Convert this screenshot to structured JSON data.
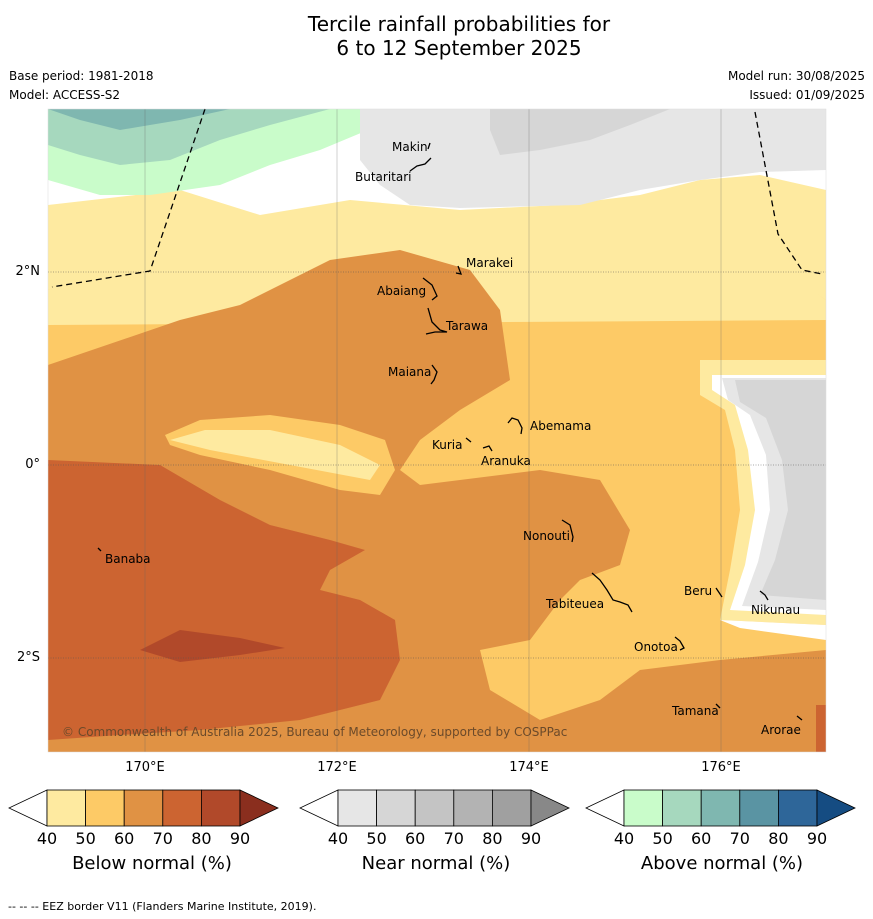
{
  "title_line1": "Tercile rainfall probabilities for",
  "title_line2": "6 to 12 September 2025",
  "base_period": "Base period: 1981-2018",
  "model": "Model: ACCESS-S2",
  "model_run": "Model run: 30/08/2025",
  "issued": "Issued: 01/09/2025",
  "copyright": "© Commonwealth of Australia 2025, Bureau of Meteorology, supported by COSPPac",
  "footer": "--  --  -- EEZ border V11 (Flanders Marine Institute, 2019).",
  "axes": {
    "lon_labels": [
      "170°E",
      "172°E",
      "174°E",
      "176°E"
    ],
    "lat_labels": [
      "2°N",
      "0°",
      "2°S"
    ]
  },
  "places": [
    {
      "name": "Makin"
    },
    {
      "name": "Butaritari"
    },
    {
      "name": "Marakei"
    },
    {
      "name": "Abaiang"
    },
    {
      "name": "Tarawa"
    },
    {
      "name": "Maiana"
    },
    {
      "name": "Abemama"
    },
    {
      "name": "Kuria"
    },
    {
      "name": "Aranuka"
    },
    {
      "name": "Nonouti"
    },
    {
      "name": "Banaba"
    },
    {
      "name": "Tabiteuea"
    },
    {
      "name": "Beru"
    },
    {
      "name": "Nikunau"
    },
    {
      "name": "Onotoa"
    },
    {
      "name": "Tamana"
    },
    {
      "name": "Arorae"
    }
  ],
  "colorbars": [
    {
      "label": "Below normal (%)",
      "ticks": [
        "40",
        "50",
        "60",
        "70",
        "80",
        "90"
      ],
      "colors": [
        "#ffffff",
        "#feeaa0",
        "#fdca66",
        "#e09244",
        "#cc6431",
        "#b1492a",
        "#8a2e1e"
      ]
    },
    {
      "label": "Near normal (%)",
      "ticks": [
        "40",
        "50",
        "60",
        "70",
        "80",
        "90"
      ],
      "colors": [
        "#ffffff",
        "#e6e6e6",
        "#d6d6d6",
        "#c4c4c4",
        "#b3b3b3",
        "#a0a0a0",
        "#888888"
      ]
    },
    {
      "label": "Above normal (%)",
      "ticks": [
        "40",
        "50",
        "60",
        "70",
        "80",
        "90"
      ],
      "colors": [
        "#ffffff",
        "#c9fcca",
        "#a6d8be",
        "#7fb7b0",
        "#5a94a3",
        "#2e6699",
        "#154c82"
      ]
    }
  ]
}
